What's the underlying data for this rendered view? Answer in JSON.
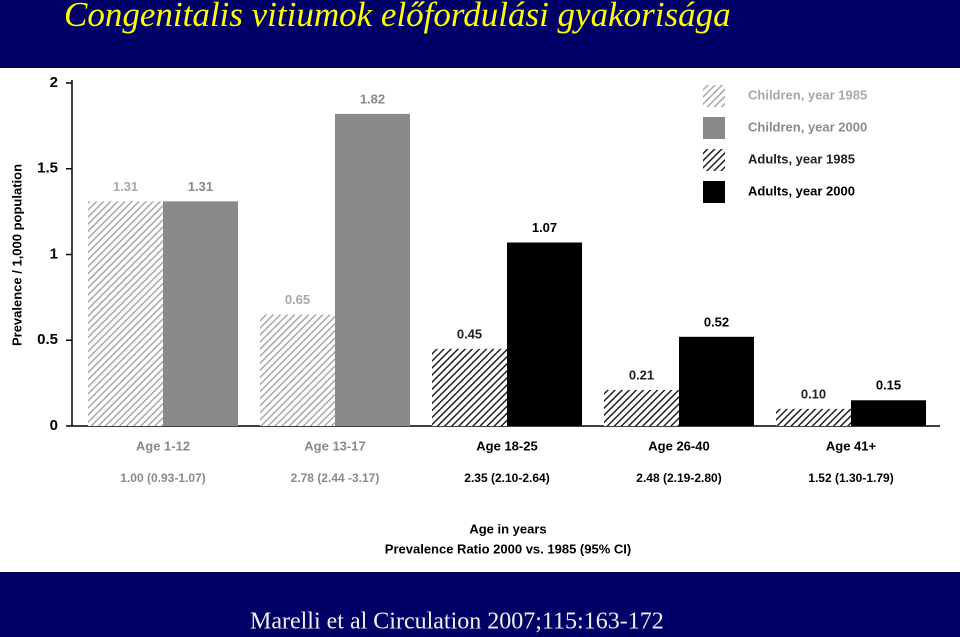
{
  "title": "Congenitalis vitiumok előfordulási gyakorisága",
  "citation": "Marelli et al Circulation 2007;115:163-172",
  "chart_data": {
    "type": "bar",
    "categories": [
      "Age 1-12",
      "Age 13-17",
      "Age 18-25",
      "Age 26-40",
      "Age 41+"
    ],
    "ratio_labels": [
      "1.00 (0.93-1.07)",
      "2.78 (2.44 -3.17)",
      "2.35 (2.10-2.64)",
      "2.48 (2.19-2.80)",
      "1.52 (1.30-1.79)"
    ],
    "x_label": "Age in years",
    "x_label_2": "Prevalence Ratio 2000 vs. 1985 (95% CI)",
    "y_label": "Prevalence / 1,000 population",
    "ylim": [
      0,
      2
    ],
    "yticks": [
      0,
      0.5,
      1,
      1.5,
      2
    ],
    "series": [
      {
        "name": "Children, year 1985",
        "color": "#a8a8a8",
        "hatch": true,
        "values": [
          1.31,
          0.65,
          null,
          null,
          null
        ],
        "value_labels": [
          "1.31",
          "0.65",
          null,
          null,
          null
        ]
      },
      {
        "name": "Children, year 2000",
        "color": "#8a8a8a",
        "hatch": false,
        "values": [
          1.31,
          1.82,
          null,
          null,
          null
        ],
        "value_labels": [
          "1.31",
          "1.82",
          null,
          null,
          null
        ]
      },
      {
        "name": "Adults, year 1985",
        "color": "#222222",
        "hatch": true,
        "values": [
          null,
          null,
          0.45,
          0.21,
          0.1
        ],
        "value_labels": [
          null,
          null,
          "0.45",
          "0.21",
          "0.10"
        ]
      },
      {
        "name": "Adults, year 2000",
        "color": "#000000",
        "hatch": false,
        "values": [
          null,
          null,
          1.07,
          0.52,
          0.15
        ],
        "value_labels": [
          null,
          null,
          "1.07",
          "0.52",
          "0.15"
        ]
      }
    ]
  }
}
